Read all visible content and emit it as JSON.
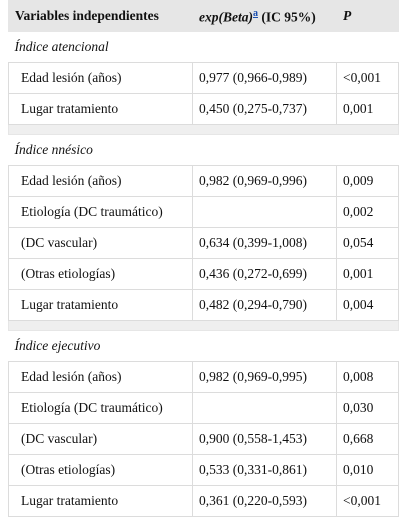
{
  "header": {
    "col1": "Variables independientes",
    "col2": "exp(Beta)",
    "col2_note": "a",
    "col2_suffix": "(IC 95%)",
    "col3": "P"
  },
  "sections": [
    {
      "title": "Índice atencional",
      "rows": [
        [
          "Edad lesión (años)",
          "0,977 (0,966-0,989)",
          "<0,001"
        ],
        [
          "Lugar tratamiento",
          "0,450 (0,275-0,737)",
          "0,001"
        ]
      ]
    },
    {
      "title": "Índice nnésico",
      "rows": [
        [
          "Edad lesión (años)",
          "0,982 (0,969-0,996)",
          "0,009"
        ],
        [
          "Etiología (DC traumático)",
          null,
          "0,002"
        ],
        [
          "(DC vascular)",
          "0,634 (0,399-1,008)",
          "0,054"
        ],
        [
          "(Otras etiologías)",
          "0,436 (0,272-0,699)",
          "0,001"
        ],
        [
          "Lugar tratamiento",
          "0,482 (0,294-0,790)",
          "0,004"
        ]
      ]
    },
    {
      "title": "Índice ejecutivo",
      "rows": [
        [
          "Edad lesión (años)",
          "0,982 (0,969-0,995)",
          "0,008"
        ],
        [
          "Etiología (DC traumático)",
          null,
          "0,030"
        ],
        [
          "(DC vascular)",
          "0,900 (0,558-1,453)",
          "0,668"
        ],
        [
          "(Otras etiologías)",
          "0,533 (0,331-0,861)",
          "0,010"
        ],
        [
          "Lugar tratamiento",
          "0,361 (0,220-0,593)",
          "<0,001"
        ]
      ]
    }
  ]
}
